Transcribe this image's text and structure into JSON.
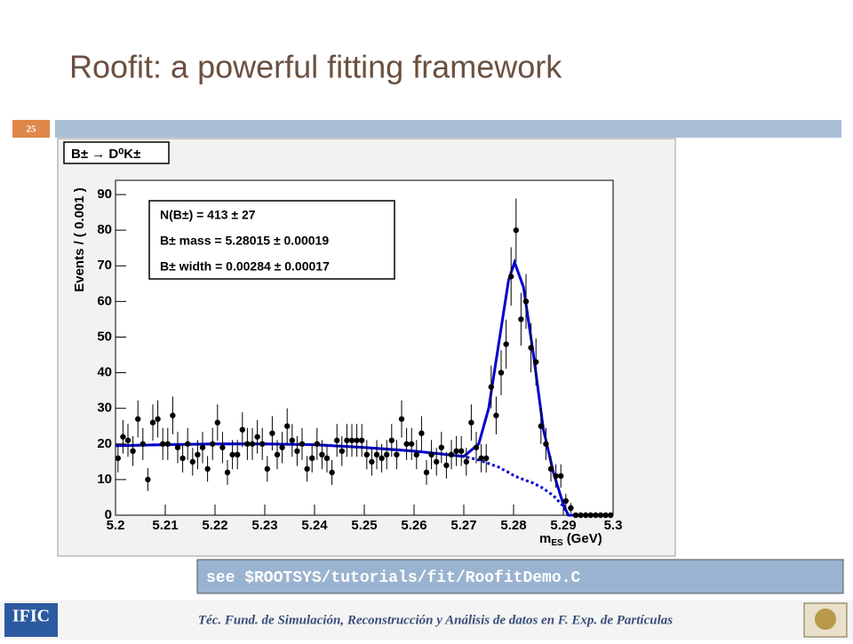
{
  "slide": {
    "title": "Roofit: a powerful fitting framework",
    "page": "25",
    "code": "see $ROOTSYS/tutorials/fit/RoofitDemo.C",
    "footer": "Téc. Fund. de Simulación, Reconstrucción y Análisis de datos en F. Exp. de Partículas",
    "logo": "IFIC"
  },
  "chart_data": {
    "type": "scatter",
    "title": "B± → D⁰K±",
    "y_label": "Events / ( 0.001 )",
    "x_label": "m",
    "x_label_sub": "ES",
    "x_label_unit": "(GeV)",
    "annotations": [
      "N(B±) =  413 ± 27",
      "B± mass =  5.28015 ± 0.00019",
      "B± width =  0.00284 ± 0.00017"
    ],
    "xlim": [
      5.2,
      5.3
    ],
    "ylim": [
      0,
      94
    ],
    "xticks": [
      5.2,
      5.21,
      5.22,
      5.23,
      5.24,
      5.25,
      5.26,
      5.27,
      5.28,
      5.29,
      5.3
    ],
    "yticks": [
      0,
      10,
      20,
      30,
      40,
      50,
      60,
      70,
      80,
      90
    ],
    "color": "#000000",
    "x": [
      5.2005,
      5.2015,
      5.2025,
      5.2035,
      5.2045,
      5.2055,
      5.2065,
      5.2075,
      5.2085,
      5.2095,
      5.2105,
      5.2115,
      5.2125,
      5.2135,
      5.2145,
      5.2155,
      5.2165,
      5.2175,
      5.2185,
      5.2195,
      5.2205,
      5.2215,
      5.2225,
      5.2235,
      5.2245,
      5.2255,
      5.2265,
      5.2275,
      5.2285,
      5.2295,
      5.2305,
      5.2315,
      5.2325,
      5.2335,
      5.2345,
      5.2355,
      5.2365,
      5.2375,
      5.2385,
      5.2395,
      5.2405,
      5.2415,
      5.2425,
      5.2435,
      5.2445,
      5.2455,
      5.2465,
      5.2475,
      5.2485,
      5.2495,
      5.2505,
      5.2515,
      5.2525,
      5.2535,
      5.2545,
      5.2555,
      5.2565,
      5.2575,
      5.2585,
      5.2595,
      5.2605,
      5.2615,
      5.2625,
      5.2635,
      5.2645,
      5.2655,
      5.2665,
      5.2675,
      5.2685,
      5.2695,
      5.2705,
      5.2715,
      5.2725,
      5.2735,
      5.2745,
      5.2755,
      5.2765,
      5.2775,
      5.2785,
      5.2795,
      5.2805,
      5.2815,
      5.2825,
      5.2835,
      5.2845,
      5.2855,
      5.2865,
      5.2875,
      5.2885,
      5.2895,
      5.2905,
      5.2915,
      5.2925,
      5.2935,
      5.2945,
      5.2955,
      5.2965,
      5.2975,
      5.2985,
      5.2995
    ],
    "values": [
      16,
      22,
      21,
      18,
      27,
      20,
      10,
      26,
      27,
      20,
      20,
      28,
      19,
      16,
      20,
      15,
      17,
      19,
      13,
      20,
      26,
      19,
      12,
      17,
      17,
      24,
      20,
      20,
      22,
      20,
      13,
      23,
      17,
      19,
      25,
      21,
      18,
      20,
      13,
      16,
      20,
      17,
      16,
      12,
      21,
      18,
      21,
      21,
      21,
      21,
      17,
      15,
      17,
      16,
      17,
      21,
      17,
      27,
      20,
      20,
      17,
      23,
      12,
      17,
      15,
      19,
      14,
      17,
      18,
      18,
      15,
      26,
      19,
      16,
      16,
      36,
      28,
      40,
      48,
      67,
      80,
      55,
      60,
      47,
      43,
      25,
      20,
      13,
      11,
      11,
      4,
      2,
      0,
      0,
      0,
      0,
      0,
      0,
      0,
      0
    ],
    "errors": [
      4,
      4.7,
      4.6,
      4.2,
      5.2,
      4.5,
      3.2,
      5.1,
      5.2,
      4.5,
      4.5,
      5.3,
      4.4,
      4,
      4.5,
      3.9,
      4.1,
      4.4,
      3.6,
      4.5,
      5.1,
      4.4,
      3.5,
      4.1,
      4.1,
      4.9,
      4.5,
      4.5,
      4.7,
      4.5,
      3.6,
      4.8,
      4.1,
      4.4,
      5,
      4.6,
      4.2,
      4.5,
      3.6,
      4,
      4.5,
      4.1,
      4,
      3.5,
      4.6,
      4.2,
      4.6,
      4.6,
      4.6,
      4.6,
      4.1,
      3.9,
      4.1,
      4,
      4.1,
      4.6,
      4.1,
      5.2,
      4.5,
      4.5,
      4.1,
      4.8,
      3.5,
      4.1,
      3.9,
      4.4,
      3.7,
      4.1,
      4.2,
      4.2,
      3.9,
      5.1,
      4.4,
      4,
      4,
      6,
      5.3,
      6.3,
      6.9,
      8.2,
      8.9,
      7.4,
      7.7,
      6.9,
      6.6,
      5,
      4.5,
      3.6,
      3.3,
      3.3,
      2,
      1.4,
      0,
      0,
      0,
      0,
      0,
      0,
      0,
      0
    ],
    "curves": [
      {
        "color": "#0000cc",
        "dash": false,
        "x": [
          5.2,
          5.21,
          5.22,
          5.23,
          5.24,
          5.25,
          5.26,
          5.27,
          5.273,
          5.275,
          5.277,
          5.279,
          5.2802,
          5.282,
          5.284,
          5.286,
          5.288,
          5.29,
          5.291,
          5.3
        ],
        "values": [
          19.5,
          19.8,
          20,
          20,
          19.8,
          19,
          18,
          16.5,
          20,
          30,
          48,
          66,
          71,
          64,
          45,
          24,
          12,
          3,
          0,
          0
        ]
      },
      {
        "color": "#0000cc",
        "dash": true,
        "x": [
          5.2,
          5.21,
          5.22,
          5.23,
          5.24,
          5.25,
          5.26,
          5.27,
          5.273,
          5.275,
          5.277,
          5.279,
          5.2802,
          5.282,
          5.284,
          5.286,
          5.288,
          5.29,
          5.291,
          5.3
        ],
        "values": [
          19.5,
          19.8,
          20,
          20,
          19.8,
          19,
          18,
          16.5,
          15.5,
          14.5,
          13.5,
          12,
          11,
          10,
          9,
          7.5,
          5.5,
          2.5,
          0,
          0
        ]
      }
    ]
  }
}
